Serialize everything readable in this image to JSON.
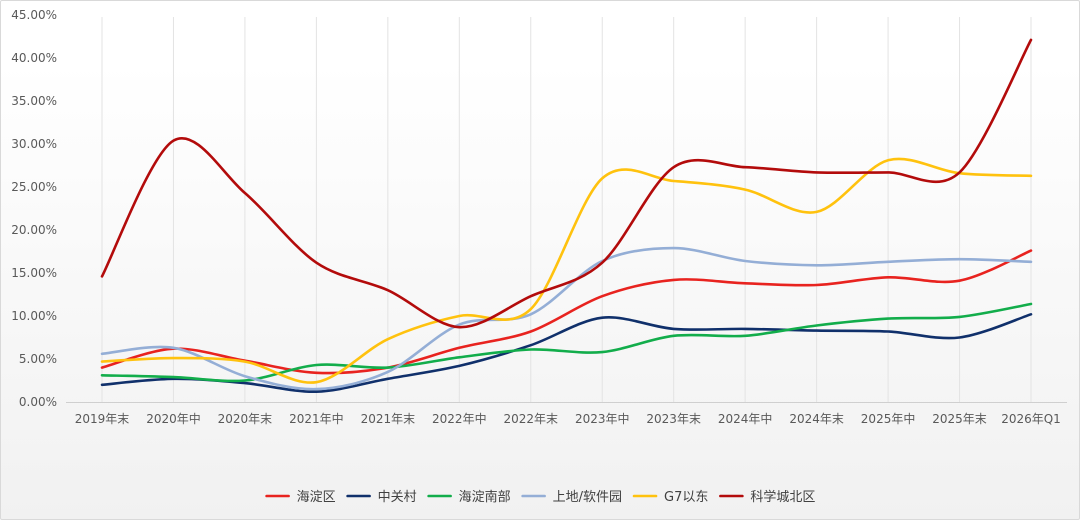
{
  "chart_data": {
    "type": "line",
    "title": "",
    "xlabel": "",
    "ylabel": "",
    "ylim": [
      0,
      0.45
    ],
    "y_tick_values": [
      0,
      0.05,
      0.1,
      0.15,
      0.2,
      0.25,
      0.3,
      0.35,
      0.4,
      0.45
    ],
    "y_tick_labels": [
      "0.00%",
      "5.00%",
      "10.00%",
      "15.00%",
      "20.00%",
      "25.00%",
      "30.00%",
      "35.00%",
      "40.00%",
      "45.00%"
    ],
    "categories": [
      "2019年末",
      "2020年中",
      "2020年末",
      "2021年中",
      "2021年末",
      "2022年中",
      "2022年末",
      "2023年中",
      "2023年末",
      "2024年中",
      "2024年末",
      "2025年中",
      "2025年末",
      "2026年Q1"
    ],
    "legend_position": "bottom",
    "series": [
      {
        "name": "海淀区",
        "color": "#e8231f",
        "values": [
          0.04,
          0.062,
          0.048,
          0.034,
          0.04,
          0.063,
          0.082,
          0.123,
          0.142,
          0.138,
          0.136,
          0.145,
          0.141,
          0.176
        ]
      },
      {
        "name": "中关村",
        "color": "#10306b",
        "values": [
          0.02,
          0.027,
          0.022,
          0.012,
          0.027,
          0.042,
          0.066,
          0.098,
          0.085,
          0.085,
          0.083,
          0.082,
          0.075,
          0.102
        ]
      },
      {
        "name": "海淀南部",
        "color": "#12ad4b",
        "values": [
          0.031,
          0.029,
          0.025,
          0.043,
          0.04,
          0.052,
          0.061,
          0.058,
          0.077,
          0.077,
          0.089,
          0.097,
          0.099,
          0.114
        ]
      },
      {
        "name": "上地/软件园",
        "color": "#94aed6",
        "values": [
          0.056,
          0.063,
          0.03,
          0.015,
          0.035,
          0.09,
          0.102,
          0.164,
          0.179,
          0.164,
          0.159,
          0.163,
          0.166,
          0.163
        ]
      },
      {
        "name": "G7以东",
        "color": "#ffc20e",
        "values": [
          0.047,
          0.051,
          0.047,
          0.023,
          0.073,
          0.1,
          0.108,
          0.26,
          0.257,
          0.247,
          0.221,
          0.281,
          0.266,
          0.263
        ]
      },
      {
        "name": "科学城北区",
        "color": "#b30b0b",
        "values": [
          0.146,
          0.304,
          0.243,
          0.162,
          0.13,
          0.087,
          0.123,
          0.162,
          0.273,
          0.273,
          0.267,
          0.267,
          0.267,
          0.421
        ]
      }
    ]
  }
}
